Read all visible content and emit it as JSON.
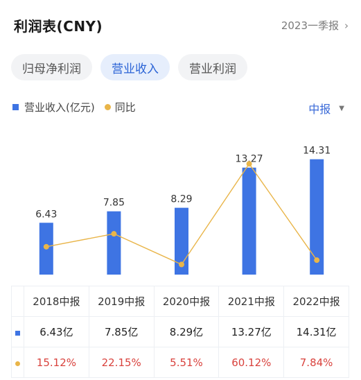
{
  "header": {
    "title": "利润表(CNY)",
    "period": "2023一季报",
    "chevron_icon": "chevron-right-icon"
  },
  "tabs": [
    {
      "label": "归母净利润",
      "active": false
    },
    {
      "label": "营业收入",
      "active": true
    },
    {
      "label": "营业利润",
      "active": false
    }
  ],
  "legend": {
    "bar_label": "营业收入(亿元)",
    "line_label": "同比"
  },
  "report_selector": {
    "value": "中报",
    "caret_icon": "caret-down-icon"
  },
  "colors": {
    "bar": "#3e74e3",
    "line": "#e9b549",
    "accent": "#2a63d6",
    "negative": "#d9423d"
  },
  "chart_data": {
    "type": "bar",
    "categories": [
      "2018中报",
      "2019中报",
      "2020中报",
      "2021中报",
      "2022中报"
    ],
    "series": [
      {
        "name": "营业收入(亿元)",
        "type": "bar",
        "values": [
          6.43,
          7.85,
          8.29,
          13.27,
          14.31
        ],
        "labels": [
          "6.43",
          "7.85",
          "8.29",
          "13.27",
          "14.31"
        ]
      },
      {
        "name": "同比",
        "type": "line",
        "values": [
          15.12,
          22.15,
          5.51,
          60.12,
          7.84
        ]
      }
    ],
    "title": "",
    "xlabel": "",
    "ylabel": "",
    "grid": false
  },
  "table": {
    "years": [
      "2018中报",
      "2019中报",
      "2020中报",
      "2021中报",
      "2022中报"
    ],
    "revenue": [
      "6.43亿",
      "7.85亿",
      "8.29亿",
      "13.27亿",
      "14.31亿"
    ],
    "yoy": [
      "15.12%",
      "22.15%",
      "5.51%",
      "60.12%",
      "7.84%"
    ]
  }
}
